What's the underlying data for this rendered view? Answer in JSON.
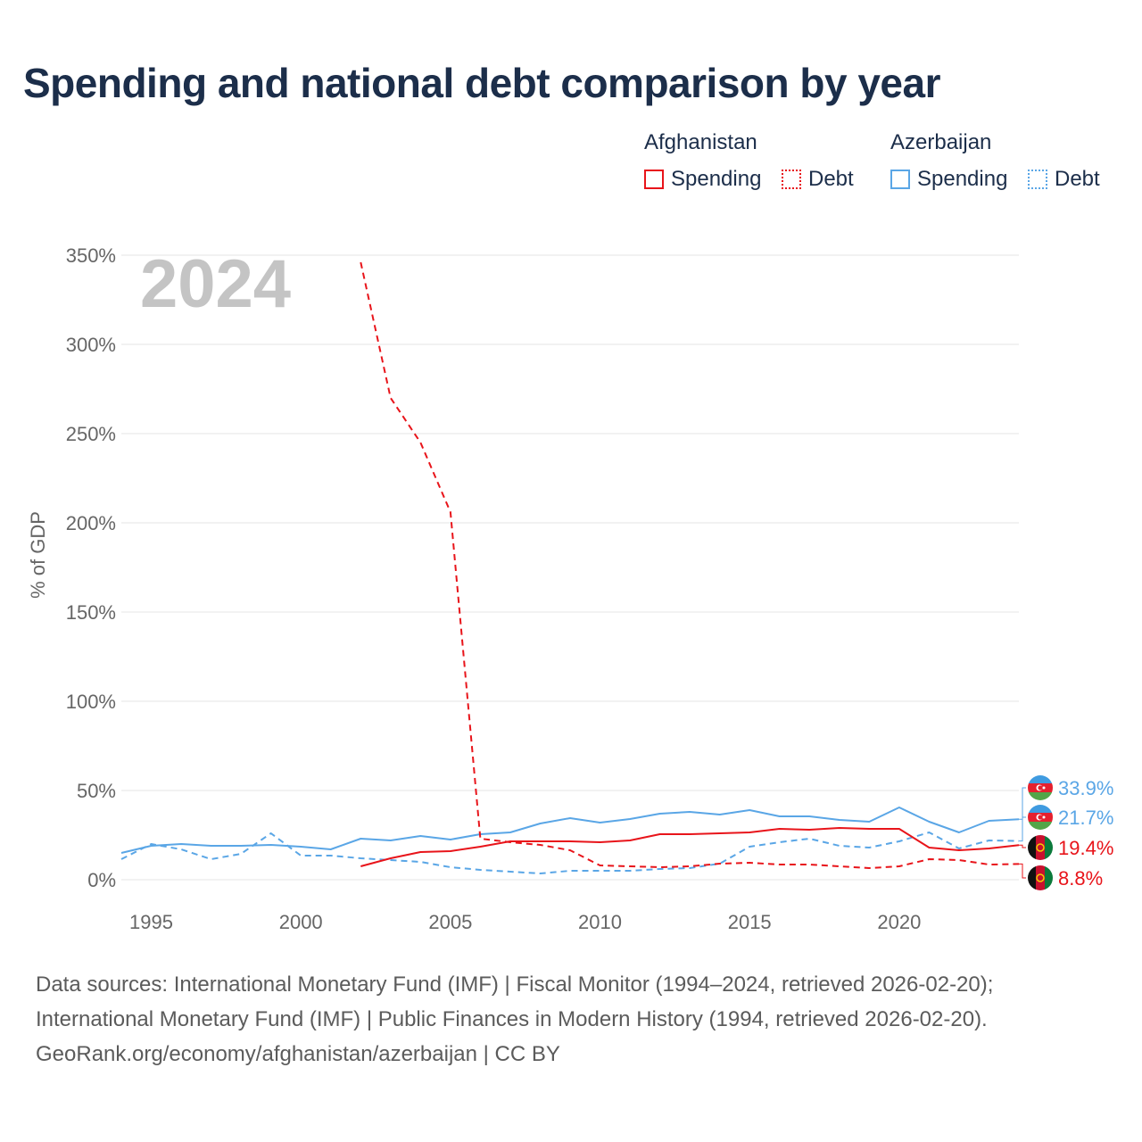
{
  "title": "Spending and national debt comparison by year",
  "legend": {
    "groups": [
      {
        "name": "Afghanistan",
        "spending": "Spending",
        "debt": "Debt"
      },
      {
        "name": "Azerbaijan",
        "spending": "Spending",
        "debt": "Debt"
      }
    ]
  },
  "colors": {
    "afghanistan": "#e8141a",
    "azerbaijan": "#5aa6e6",
    "title": "#1c2e4a",
    "year_watermark": "#c4c4c4"
  },
  "footer": {
    "line1": "Data sources: International Monetary Fund (IMF) | Fiscal Monitor (1994–2024, retrieved 2026-02-20);",
    "line2": "International Monetary Fund (IMF) | Public Finances in Modern History (1994, retrieved 2026-02-20).",
    "line3": "GeoRank.org/economy/afghanistan/azerbaijan | CC BY"
  },
  "chart_data": {
    "type": "line",
    "year_label": "2024",
    "ylabel": "% of GDP",
    "xlabel": "",
    "xlim": [
      1994,
      2024
    ],
    "ylim": [
      0,
      350
    ],
    "x_ticks": [
      1995,
      2000,
      2005,
      2010,
      2015,
      2020
    ],
    "y_ticks": [
      0,
      50,
      100,
      150,
      200,
      250,
      300,
      350
    ],
    "y_tick_labels": [
      "0%",
      "50%",
      "100%",
      "150%",
      "200%",
      "250%",
      "300%",
      "350%"
    ],
    "grid": true,
    "legend_position": "top-right",
    "series": [
      {
        "name": "Azerbaijan Spending",
        "country": "Azerbaijan",
        "kind": "spending",
        "color": "#5aa6e6",
        "dashed": false,
        "x": [
          1994,
          1995,
          1996,
          1997,
          1998,
          1999,
          2000,
          2001,
          2002,
          2003,
          2004,
          2005,
          2006,
          2007,
          2008,
          2009,
          2010,
          2011,
          2012,
          2013,
          2014,
          2015,
          2016,
          2017,
          2018,
          2019,
          2020,
          2021,
          2022,
          2023,
          2024
        ],
        "values": [
          15,
          19,
          20,
          19,
          19,
          19.5,
          18.5,
          17,
          23,
          22,
          24.5,
          22.5,
          25.5,
          26.5,
          31.5,
          34.5,
          32,
          34,
          37,
          38,
          36.5,
          39,
          35.5,
          35.5,
          33.5,
          32.5,
          40.5,
          32.5,
          26.5,
          33,
          33.9
        ]
      },
      {
        "name": "Azerbaijan Debt",
        "country": "Azerbaijan",
        "kind": "debt",
        "color": "#5aa6e6",
        "dashed": true,
        "x": [
          1994,
          1995,
          1996,
          1997,
          1998,
          1999,
          2000,
          2001,
          2002,
          2003,
          2004,
          2005,
          2006,
          2007,
          2008,
          2009,
          2010,
          2011,
          2012,
          2013,
          2014,
          2015,
          2016,
          2017,
          2018,
          2019,
          2020,
          2021,
          2022,
          2023,
          2024
        ],
        "values": [
          11.5,
          20,
          17,
          11.5,
          14.5,
          26,
          13.5,
          13.5,
          12,
          11,
          10,
          7,
          5.5,
          4.5,
          3.5,
          5,
          5,
          5,
          6,
          6.5,
          9,
          18.5,
          21,
          23,
          19,
          18,
          21.5,
          26.5,
          17.5,
          22,
          21.7
        ]
      },
      {
        "name": "Afghanistan Spending",
        "country": "Afghanistan",
        "kind": "spending",
        "color": "#e8141a",
        "dashed": false,
        "x": [
          2002,
          2003,
          2004,
          2005,
          2006,
          2007,
          2008,
          2009,
          2010,
          2011,
          2012,
          2013,
          2014,
          2015,
          2016,
          2017,
          2018,
          2019,
          2020,
          2021,
          2022,
          2023,
          2024
        ],
        "values": [
          7.5,
          12,
          15.5,
          16,
          18.5,
          21.5,
          21.5,
          21.5,
          21,
          22,
          25.5,
          25.5,
          26,
          26.5,
          28.5,
          28,
          29,
          28.5,
          28.5,
          18,
          16.5,
          17.5,
          19.4
        ]
      },
      {
        "name": "Afghanistan Debt",
        "country": "Afghanistan",
        "kind": "debt",
        "color": "#e8141a",
        "dashed": true,
        "x": [
          2002,
          2003,
          2004,
          2005,
          2006,
          2007,
          2008,
          2009,
          2010,
          2011,
          2012,
          2013,
          2014,
          2015,
          2016,
          2017,
          2018,
          2019,
          2020,
          2021,
          2022,
          2023,
          2024
        ],
        "values": [
          346,
          270,
          245,
          206,
          23,
          21,
          19.5,
          16.5,
          8,
          7.5,
          7,
          7.5,
          9,
          9.5,
          8.5,
          8.5,
          7.5,
          6.5,
          7.5,
          11.5,
          11,
          8.5,
          8.8
        ]
      }
    ],
    "end_labels": [
      {
        "country": "Azerbaijan",
        "text": "33.9%",
        "color": "#5aa6e6",
        "value": 33.9
      },
      {
        "country": "Azerbaijan",
        "text": "21.7%",
        "color": "#5aa6e6",
        "value": 21.7
      },
      {
        "country": "Afghanistan",
        "text": "19.4%",
        "color": "#e8141a",
        "value": 19.4
      },
      {
        "country": "Afghanistan",
        "text": "8.8%",
        "color": "#e8141a",
        "value": 8.8
      }
    ]
  }
}
